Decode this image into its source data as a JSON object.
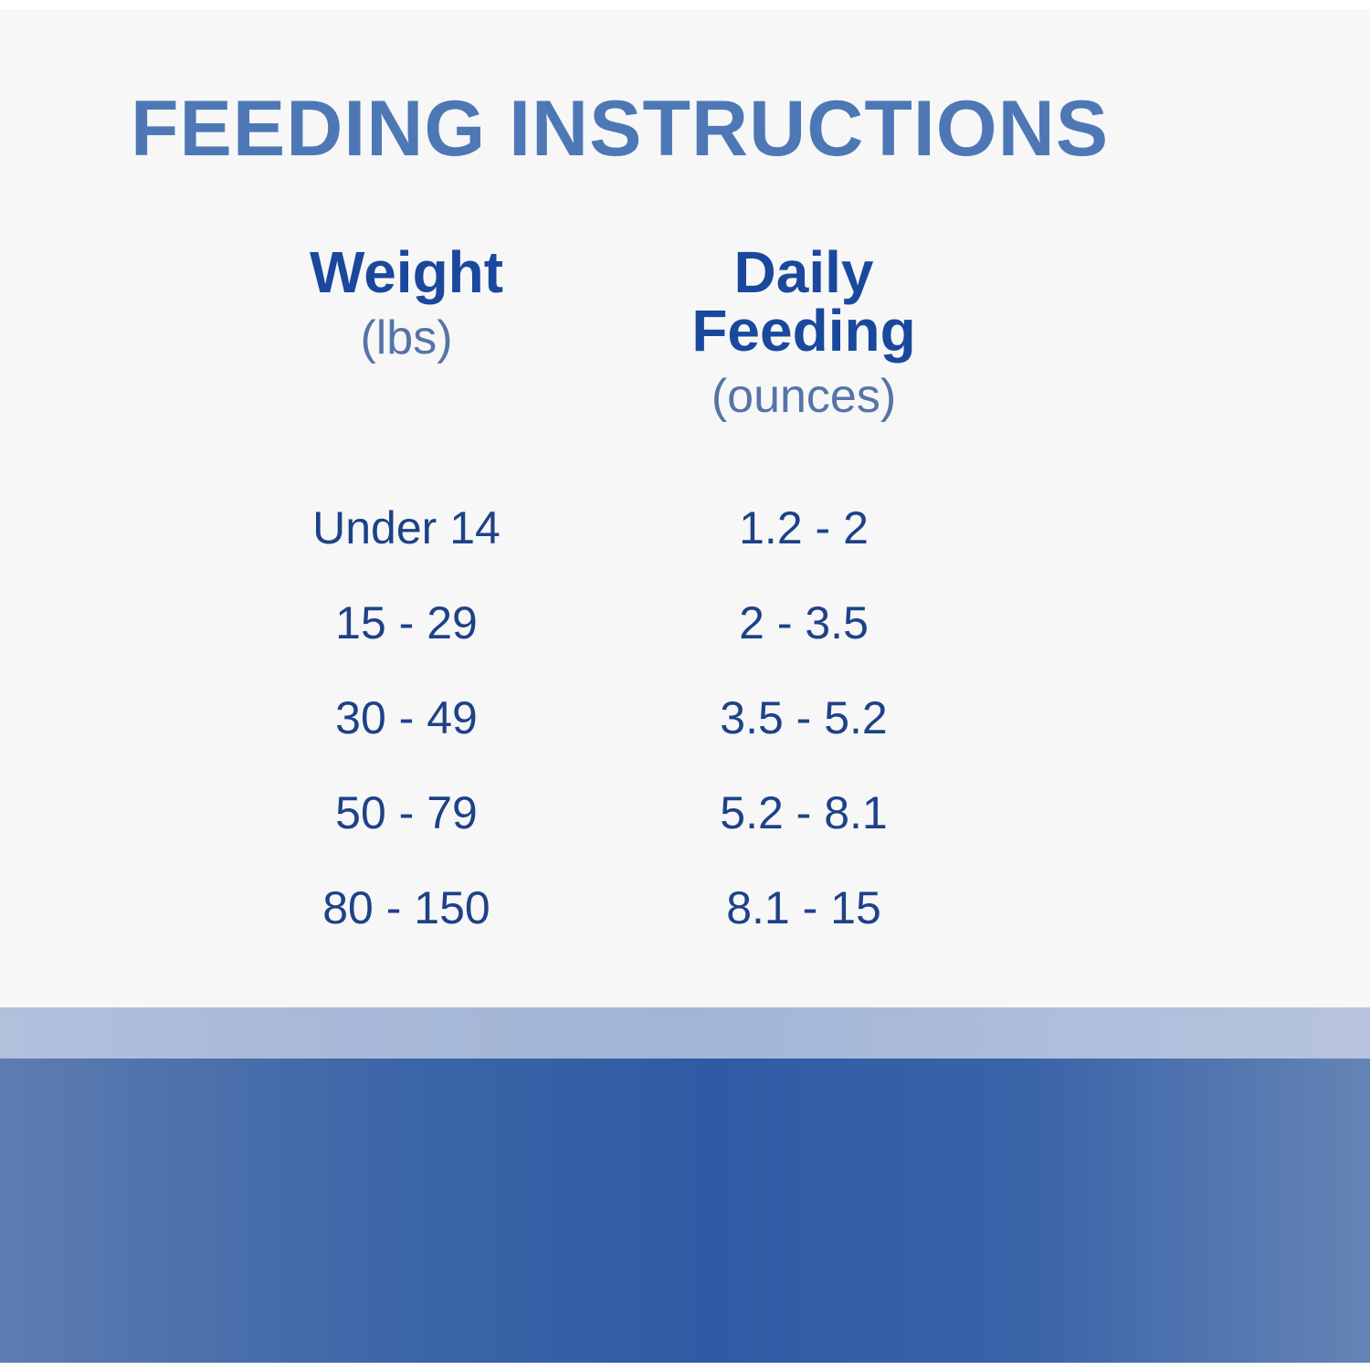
{
  "title": "FEEDING INSTRUCTIONS",
  "table": {
    "columns": [
      {
        "label": "Weight",
        "unit": "(lbs)"
      },
      {
        "label": "Daily Feeding",
        "unit": "(ounces)"
      }
    ],
    "rows": [
      {
        "weight": "Under 14",
        "feeding": "1.2 - 2"
      },
      {
        "weight": "15 - 29",
        "feeding": "2 - 3.5"
      },
      {
        "weight": "30 - 49",
        "feeding": "3.5 - 5.2"
      },
      {
        "weight": "50 - 79",
        "feeding": "5.2 - 8.1"
      },
      {
        "weight": "80 - 150",
        "feeding": "8.1 - 15"
      }
    ]
  },
  "colors": {
    "title_blue": "#4d78b5",
    "header_blue": "#1a489c",
    "unit_blue": "#5674a7",
    "data_blue": "#1d4287",
    "content_background": "#f7f7f8",
    "light_band": "#a9b9d8",
    "dark_band": "#2e5ba4"
  },
  "chart_data": {
    "type": "table",
    "title": "FEEDING INSTRUCTIONS",
    "columns": [
      "Weight (lbs)",
      "Daily Feeding (ounces)"
    ],
    "rows": [
      [
        "Under 14",
        "1.2 - 2"
      ],
      [
        "15 - 29",
        "2 - 3.5"
      ],
      [
        "30 - 49",
        "3.5 - 5.2"
      ],
      [
        "50 - 79",
        "5.2 - 8.1"
      ],
      [
        "80 - 150",
        "8.1 - 15"
      ]
    ],
    "layout_hints": {
      "header_style": "bold dark blue with lighter unit sub-labels",
      "grid": "off",
      "footer": "light blue band above dark blue gradient band"
    }
  }
}
